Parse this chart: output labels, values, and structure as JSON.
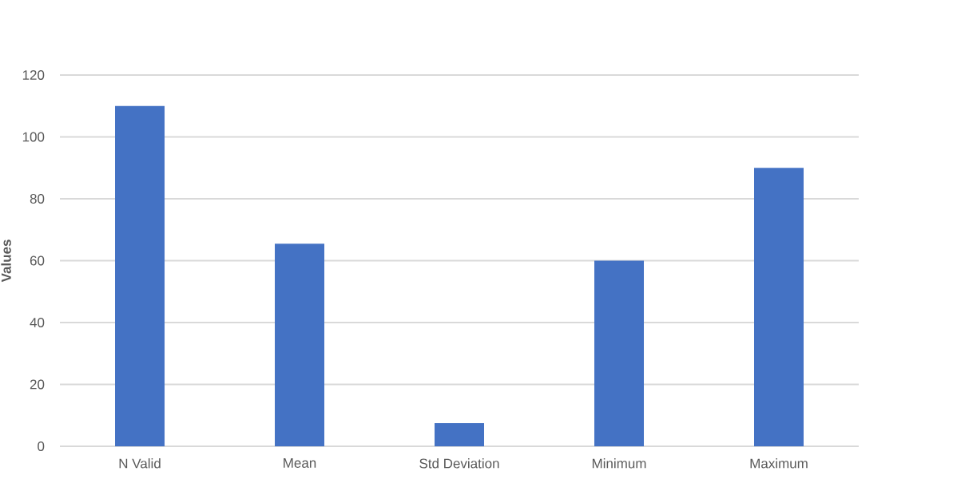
{
  "chart_data": {
    "type": "bar",
    "ylabel": "Values",
    "categories": [
      "N Valid",
      "Mean",
      "Std Deviation",
      "Minimum",
      "Maximum"
    ],
    "values": [
      110,
      65.5,
      7.5,
      60,
      90
    ],
    "color": "#4472c4",
    "ylim": [
      0,
      120
    ],
    "yticks": [
      0,
      20,
      40,
      60,
      80,
      100,
      120
    ],
    "grid": "y"
  }
}
